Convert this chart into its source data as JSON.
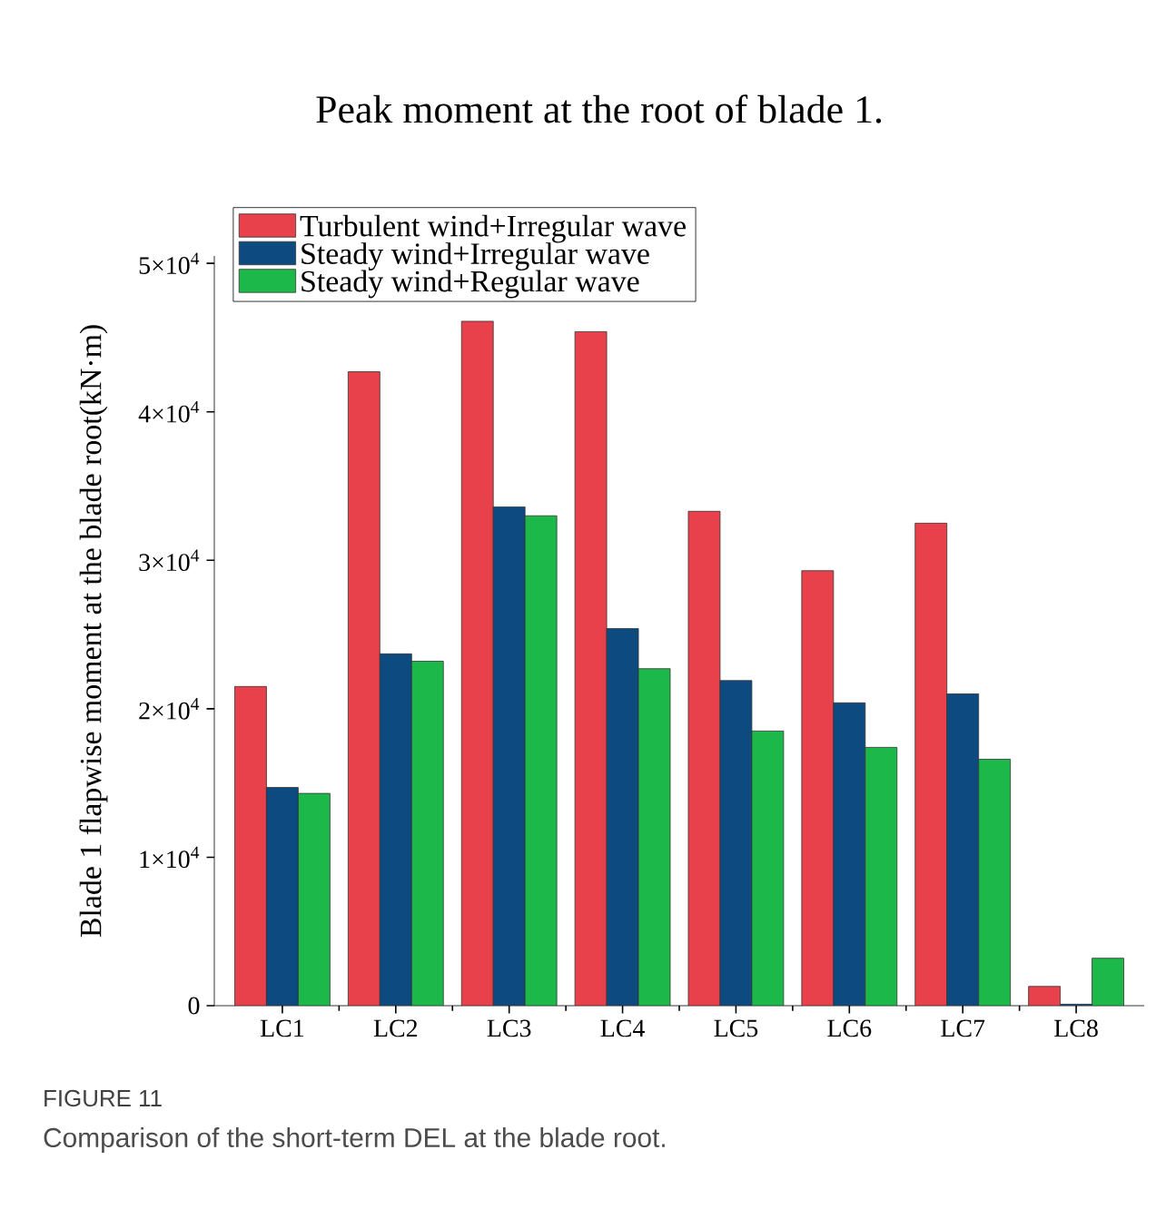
{
  "chart_data": {
    "type": "bar",
    "title": "Peak moment at the root of blade 1.",
    "ylabel": "Blade 1 flapwise moment at the blade root(kN·m)",
    "categories": [
      "LC1",
      "LC2",
      "LC3",
      "LC4",
      "LC5",
      "LC6",
      "LC7",
      "LC8"
    ],
    "series": [
      {
        "name": "Turbulent wind+Irregular wave",
        "color": "#e8414b",
        "values": [
          21500,
          42700,
          46100,
          45400,
          33300,
          29300,
          32500,
          1300
        ]
      },
      {
        "name": "Steady wind+Irregular wave",
        "color": "#0d4a80",
        "values": [
          14700,
          23700,
          33600,
          25400,
          21900,
          20400,
          21000,
          100
        ]
      },
      {
        "name": "Steady wind+Regular wave",
        "color": "#1db84a",
        "values": [
          14300,
          23200,
          33000,
          22700,
          18500,
          17400,
          16600,
          3200
        ]
      }
    ],
    "ylim": [
      0,
      50500
    ],
    "yticks": [
      0,
      {
        "value": 10000,
        "label": "1×10$^{4}$"
      },
      {
        "value": 20000,
        "label": "2×10$^{4}$"
      },
      {
        "value": 30000,
        "label": "3×10$^{4}$"
      },
      {
        "value": 40000,
        "label": "4×10$^{4}$"
      },
      {
        "value": 50000,
        "label": "5×10$^{4}$"
      }
    ],
    "legend": "top left",
    "annotations": [
      "FIGURE 11",
      "Comparison of the short-term DEL at the blade root."
    ]
  }
}
